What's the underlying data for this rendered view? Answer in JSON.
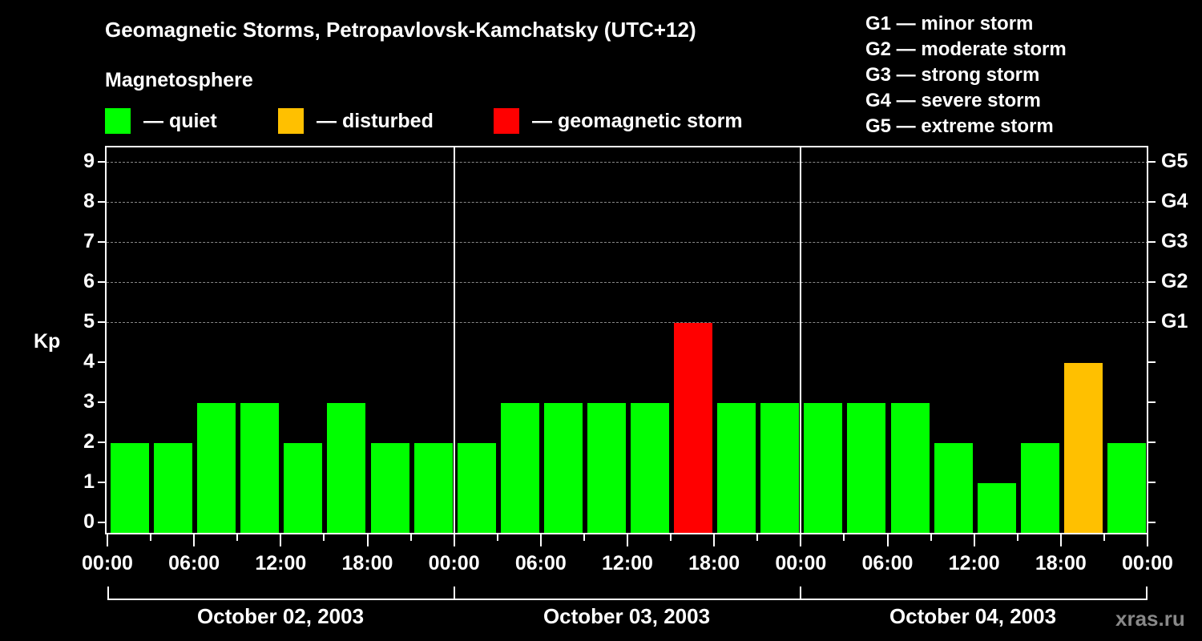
{
  "header": {
    "title": "Geomagnetic Storms, Petropavlovsk-Kamchatsky (UTC+12)",
    "subtitle": "Magnetosphere"
  },
  "legend": {
    "items": [
      {
        "label": "— quiet",
        "color": "#00ff00"
      },
      {
        "label": "— disturbed",
        "color": "#ffc000"
      },
      {
        "label": "— geomagnetic storm",
        "color": "#ff0000"
      }
    ]
  },
  "g_legend": [
    "G1 — minor storm",
    "G2 — moderate storm",
    "G3 — strong storm",
    "G4 — severe storm",
    "G5 — extreme storm"
  ],
  "credit": "xras.ru",
  "chart_data": {
    "type": "bar",
    "title": "Geomagnetic Storms, Petropavlovsk-Kamchatsky (UTC+12)",
    "subtitle": "Magnetosphere",
    "xlabel": "",
    "ylabel": "Kp",
    "ylim": [
      0,
      9
    ],
    "yticks": [
      "0",
      "1",
      "2",
      "3",
      "4",
      "5",
      "6",
      "7",
      "8",
      "9"
    ],
    "right_axis_labels": [
      {
        "kp": 5,
        "label": "G1"
      },
      {
        "kp": 6,
        "label": "G2"
      },
      {
        "kp": 7,
        "label": "G3"
      },
      {
        "kp": 8,
        "label": "G4"
      },
      {
        "kp": 9,
        "label": "G5"
      }
    ],
    "grid": "dashed horizontal at Kp 5-9",
    "xtick_labels": [
      "00:00",
      "06:00",
      "12:00",
      "18:00",
      "00:00",
      "06:00",
      "12:00",
      "18:00",
      "00:00",
      "06:00",
      "12:00",
      "18:00",
      "00:00"
    ],
    "days": [
      "October 02, 2003",
      "October 03, 2003",
      "October 04, 2003"
    ],
    "interval_hours": 3,
    "categories": [
      "Oct 02 00:00",
      "Oct 02 03:00",
      "Oct 02 06:00",
      "Oct 02 09:00",
      "Oct 02 12:00",
      "Oct 02 15:00",
      "Oct 02 18:00",
      "Oct 02 21:00",
      "Oct 03 00:00",
      "Oct 03 03:00",
      "Oct 03 06:00",
      "Oct 03 09:00",
      "Oct 03 12:00",
      "Oct 03 15:00",
      "Oct 03 18:00",
      "Oct 03 21:00",
      "Oct 04 00:00",
      "Oct 04 03:00",
      "Oct 04 06:00",
      "Oct 04 09:00",
      "Oct 04 12:00",
      "Oct 04 15:00",
      "Oct 04 18:00",
      "Oct 04 21:00"
    ],
    "values": [
      2,
      2,
      3,
      3,
      2,
      3,
      2,
      2,
      2,
      3,
      3,
      3,
      3,
      5,
      3,
      3,
      3,
      3,
      3,
      2,
      1,
      2,
      4,
      2
    ],
    "status": [
      "quiet",
      "quiet",
      "quiet",
      "quiet",
      "quiet",
      "quiet",
      "quiet",
      "quiet",
      "quiet",
      "quiet",
      "quiet",
      "quiet",
      "quiet",
      "storm",
      "quiet",
      "quiet",
      "quiet",
      "quiet",
      "quiet",
      "quiet",
      "quiet",
      "quiet",
      "disturbed",
      "quiet"
    ],
    "colors": {
      "quiet": "#00ff00",
      "disturbed": "#ffc000",
      "storm": "#ff0000"
    }
  }
}
